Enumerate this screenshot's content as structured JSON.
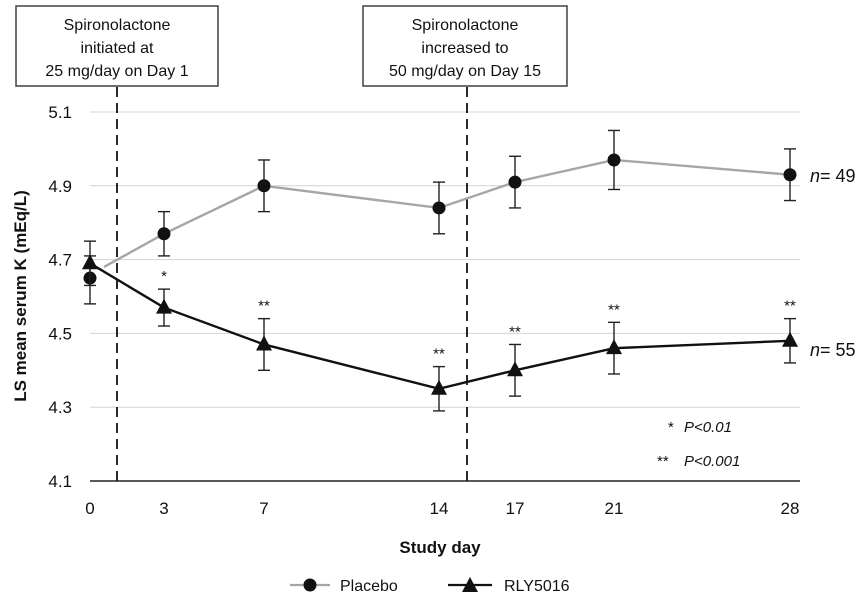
{
  "chart_data": {
    "type": "line",
    "xlabel": "Study day",
    "ylabel": "LS mean serum K (mEq/L)",
    "ylim": [
      4.1,
      5.1
    ],
    "yticks": [
      "4.1",
      "4.3",
      "4.5",
      "4.7",
      "4.9",
      "5.1"
    ],
    "categories": [
      "0",
      "3",
      "7",
      "14",
      "17",
      "21",
      "28"
    ],
    "grid": "horizontal",
    "legend_position": "bottom",
    "series": [
      {
        "name": "Placebo",
        "color": "#a6a6a6",
        "marker": "circle",
        "values": [
          4.65,
          4.77,
          4.9,
          4.84,
          4.91,
          4.97,
          4.93
        ],
        "error_low": [
          4.58,
          4.71,
          4.83,
          4.77,
          4.84,
          4.89,
          4.86
        ],
        "error_high": [
          4.71,
          4.83,
          4.97,
          4.91,
          4.98,
          5.05,
          5.0
        ],
        "n_label": "= 49",
        "significance": [
          "",
          "",
          "",
          "",
          "",
          "",
          ""
        ]
      },
      {
        "name": "RLY5016",
        "color": "#111111",
        "marker": "triangle",
        "values": [
          4.69,
          4.57,
          4.47,
          4.35,
          4.4,
          4.46,
          4.48
        ],
        "error_low": [
          4.63,
          4.52,
          4.4,
          4.29,
          4.33,
          4.39,
          4.42
        ],
        "error_high": [
          4.75,
          4.62,
          4.54,
          4.41,
          4.47,
          4.53,
          4.54
        ],
        "n_label": "= 55",
        "significance": [
          "",
          "*",
          "**",
          "**",
          "**",
          "**",
          "**"
        ]
      }
    ],
    "annotations": [
      {
        "lines": [
          "Spironolactone",
          "initiated at",
          "25 mg/day on Day 1"
        ]
      },
      {
        "lines": [
          "Spironolactone",
          "increased to",
          "50 mg/day on Day 15"
        ]
      }
    ],
    "n_symbol": "n",
    "significance_key": [
      {
        "symbol": "*",
        "text": "P<0.01"
      },
      {
        "symbol": "**",
        "text": "P<0.001"
      }
    ]
  }
}
